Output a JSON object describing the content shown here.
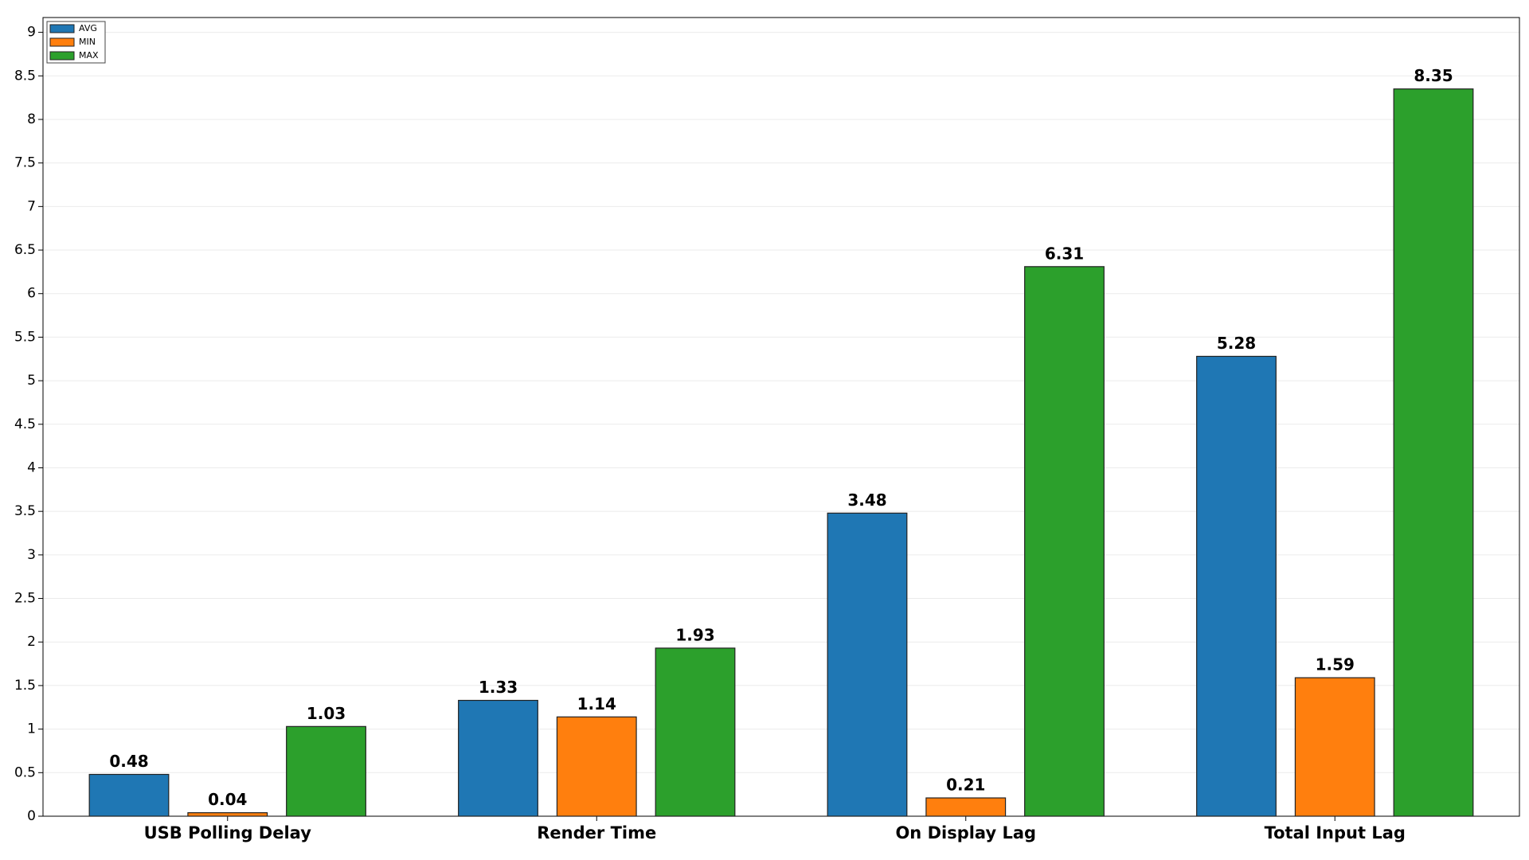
{
  "chart_data": {
    "type": "bar",
    "categories": [
      "USB Polling Delay",
      "Render Time",
      "On Display Lag",
      "Total Input Lag"
    ],
    "series": [
      {
        "name": "AVG",
        "color": "#1f77b4",
        "values": [
          0.48,
          1.33,
          3.48,
          5.28
        ]
      },
      {
        "name": "MIN",
        "color": "#ff7f0e",
        "values": [
          0.04,
          1.14,
          0.21,
          1.59
        ]
      },
      {
        "name": "MAX",
        "color": "#2ca02c",
        "values": [
          1.03,
          1.93,
          6.31,
          8.35
        ]
      }
    ],
    "ylim": [
      0,
      9.17
    ],
    "yticks": [
      0,
      0.5,
      1,
      1.5,
      2,
      2.5,
      3,
      3.5,
      4,
      4.5,
      5,
      5.5,
      6,
      6.5,
      7,
      7.5,
      8,
      8.5,
      9
    ],
    "grid": true,
    "legend": "upper left"
  }
}
